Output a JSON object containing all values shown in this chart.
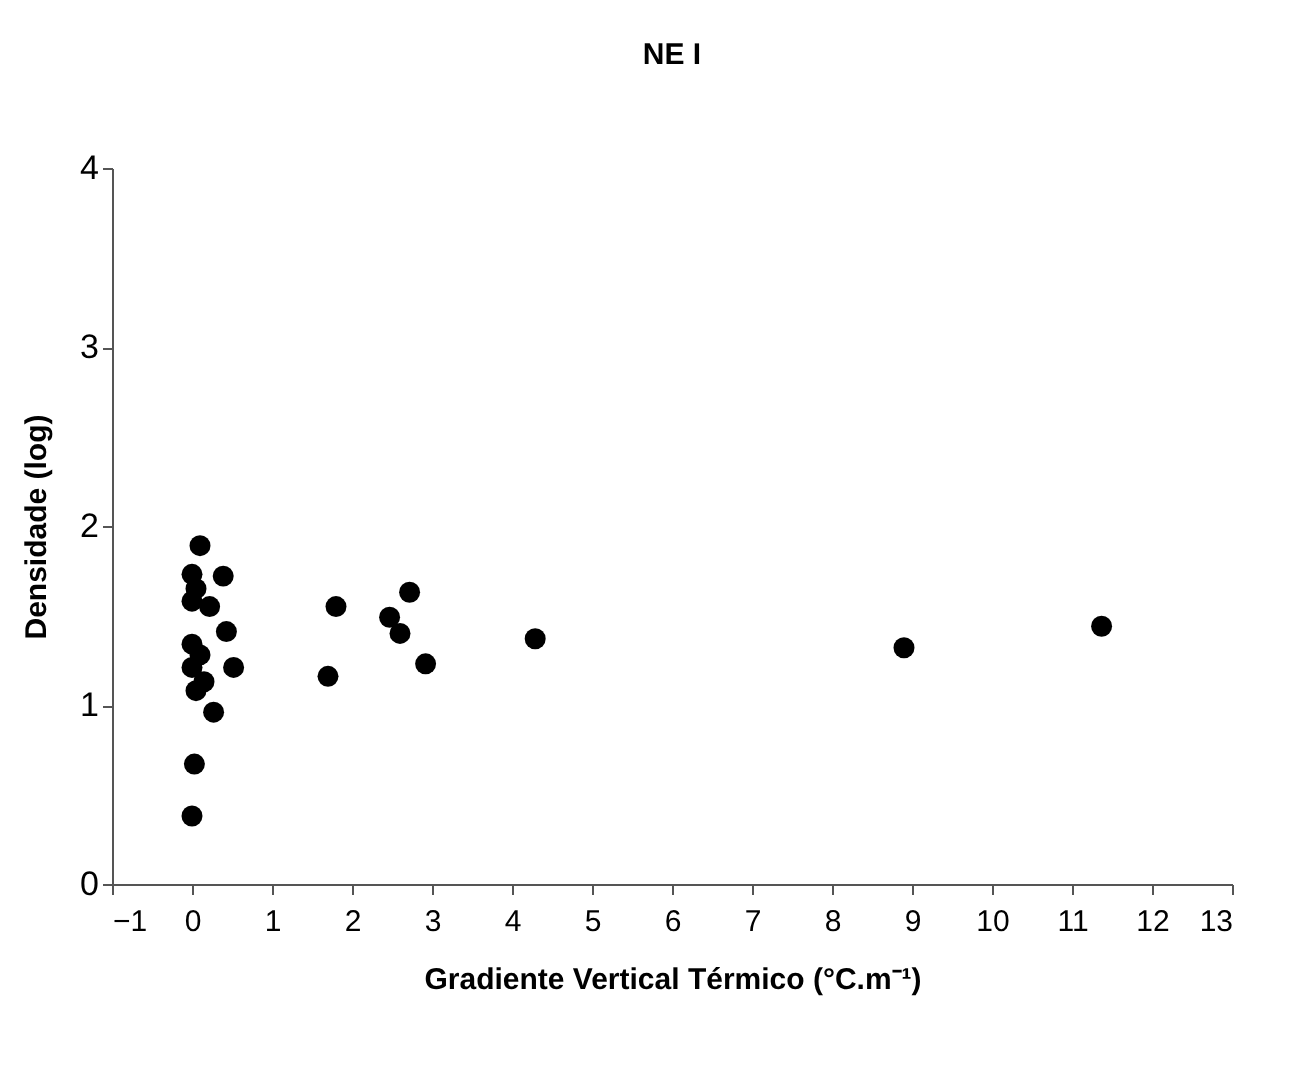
{
  "chart_data": {
    "type": "scatter",
    "title": "NE I",
    "xlabel": "Gradiente Vertical Térmico (°C.m⁻¹)",
    "ylabel": "Densidade (log)",
    "x": [
      0.1,
      0.39,
      0.0,
      0.0,
      0.22,
      0.43,
      0.0,
      0.0,
      0.52,
      0.05,
      0.15,
      0.27,
      0.03,
      0.0,
      0.05,
      0.1,
      1.8,
      1.7,
      2.72,
      2.47,
      2.6,
      2.92,
      4.29,
      8.9,
      11.37
    ],
    "series": [
      {
        "color": "#000000",
        "values": [
          1.89,
          1.72,
          1.73,
          1.58,
          1.55,
          1.41,
          1.34,
          1.21,
          1.21,
          1.08,
          1.13,
          0.96,
          0.67,
          0.38,
          1.65,
          1.28,
          1.55,
          1.16,
          1.63,
          1.49,
          1.4,
          1.23,
          1.37,
          1.32,
          1.44
        ]
      }
    ],
    "xlim": [
      -1,
      13
    ],
    "xticks": [
      -1,
      0,
      1,
      2,
      3,
      4,
      5,
      6,
      7,
      8,
      9,
      10,
      11,
      12,
      13
    ],
    "ylim": [
      0,
      4
    ],
    "yticks": [
      0,
      1,
      2,
      3,
      4
    ],
    "marker": "circle",
    "grid": false,
    "legend": false
  }
}
